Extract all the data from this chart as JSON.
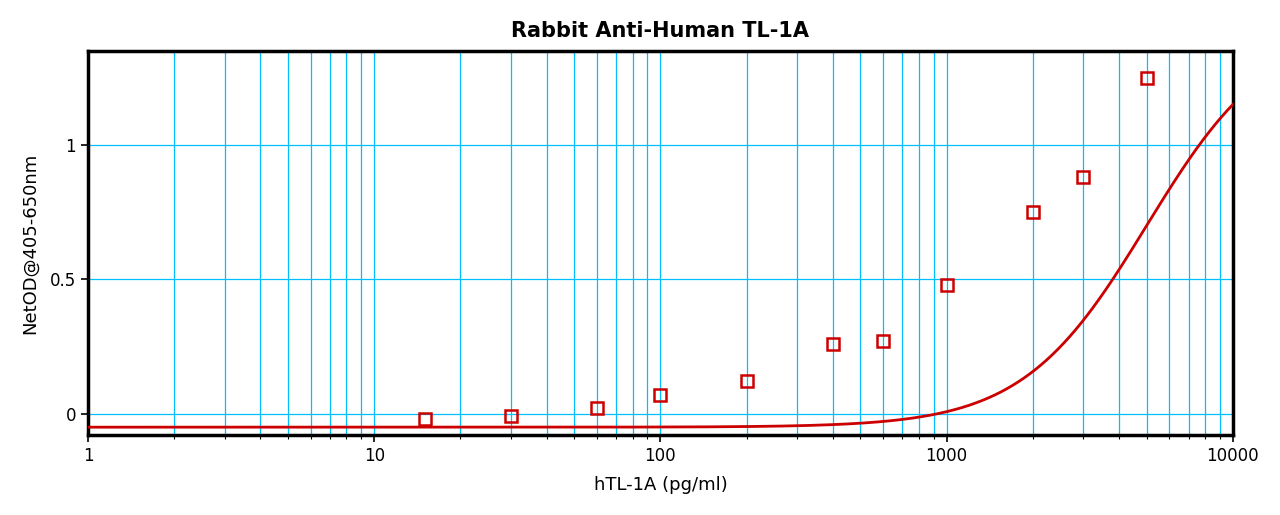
{
  "title": "Rabbit Anti-Human TL-1A",
  "xlabel": "hTL-1A (pg/ml)",
  "ylabel": "NetOD@405-650nm",
  "x_data": [
    15,
    30,
    60,
    100,
    200,
    400,
    600,
    1000,
    2000,
    3000,
    5000
  ],
  "y_data": [
    -0.02,
    -0.01,
    0.02,
    0.07,
    0.12,
    0.26,
    0.27,
    0.48,
    0.75,
    0.88,
    1.25
  ],
  "xlim": [
    1,
    10000
  ],
  "ylim": [
    -0.08,
    1.35
  ],
  "yticks": [
    0.0,
    0.5,
    1.0
  ],
  "ytick_labels": [
    "0",
    "0.5",
    "1"
  ],
  "xticks": [
    1,
    10,
    100,
    1000,
    10000
  ],
  "xtick_labels": [
    "1",
    "10",
    "100",
    "1000",
    "10000"
  ],
  "curve_color": "#CC0000",
  "marker_color": "#CC0000",
  "grid_color": "#00BFFF",
  "background_color": "#FFFFFF",
  "plot_bg_color": "#FFFFFF",
  "spine_color": "#000000",
  "title_fontsize": 15,
  "label_fontsize": 13,
  "tick_fontsize": 12,
  "spine_linewidth": 2.5
}
